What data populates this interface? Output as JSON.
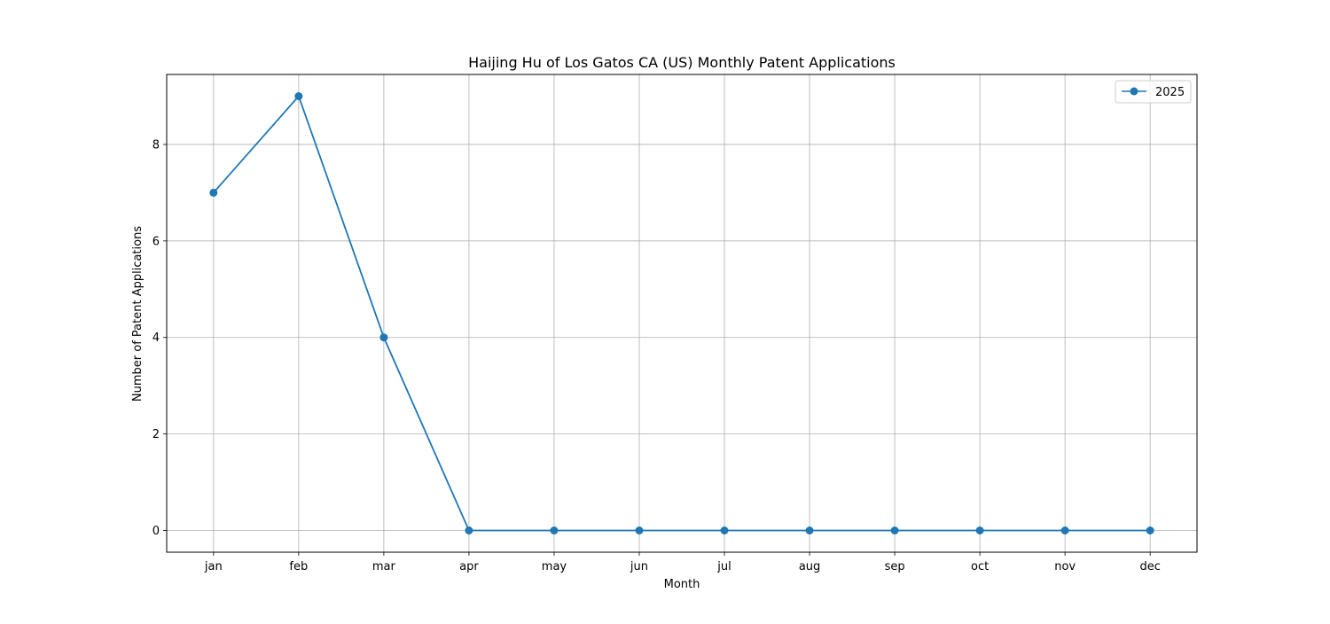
{
  "chart_data": {
    "type": "line",
    "title": "Haijing Hu of Los Gatos CA (US) Monthly Patent Applications",
    "xlabel": "Month",
    "ylabel": "Number of Patent Applications",
    "categories": [
      "jan",
      "feb",
      "mar",
      "apr",
      "may",
      "jun",
      "jul",
      "aug",
      "sep",
      "oct",
      "nov",
      "dec"
    ],
    "series": [
      {
        "name": "2025",
        "values": [
          7,
          9,
          4,
          0,
          0,
          0,
          0,
          0,
          0,
          0,
          0,
          0
        ],
        "color": "#1f77b4"
      }
    ],
    "ylim": [
      -0.45,
      9.45
    ],
    "yticks": [
      0,
      2,
      4,
      6,
      8
    ],
    "grid": true,
    "legend_position": "top-right"
  }
}
